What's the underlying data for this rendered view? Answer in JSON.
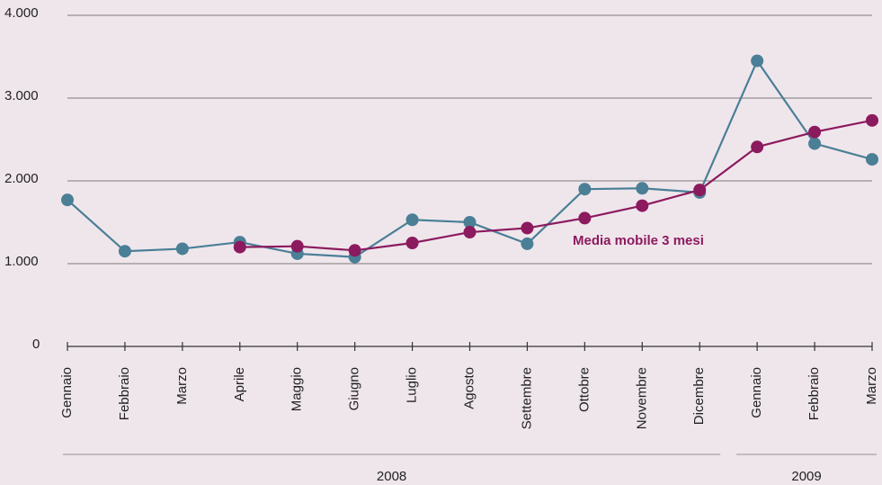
{
  "chart_data": {
    "type": "line",
    "categories": [
      "Gennaio",
      "Febbraio",
      "Marzo",
      "Aprile",
      "Maggio",
      "Giugno",
      "Luglio",
      "Agosto",
      "Settembre",
      "Ottobre",
      "Novembre",
      "Dicembre",
      "Gennaio",
      "Febbraio",
      "Marzo"
    ],
    "x_groups": [
      {
        "label": "2008",
        "size": 12
      },
      {
        "label": "2009",
        "size": 3
      }
    ],
    "series": [
      {
        "color": "#4a7f96",
        "values": [
          1770,
          1150,
          1180,
          1260,
          1120,
          1080,
          1530,
          1500,
          1240,
          1900,
          1910,
          1860,
          3450,
          2450,
          2260
        ]
      },
      {
        "name": "Media mobile 3 mesi",
        "color": "#8c1a5e",
        "values": [
          null,
          null,
          null,
          1200,
          1210,
          1160,
          1250,
          1380,
          1430,
          1550,
          1700,
          1890,
          2410,
          2590,
          2730
        ]
      }
    ],
    "ylim": [
      0,
      4000
    ],
    "yticks": [
      0,
      {
        "value": 1000,
        "label": "1.000"
      },
      {
        "value": 2000,
        "label": "2.000"
      },
      {
        "value": 3000,
        "label": "3.000"
      },
      {
        "value": 4000,
        "label": "4.000"
      }
    ],
    "grid": true
  }
}
